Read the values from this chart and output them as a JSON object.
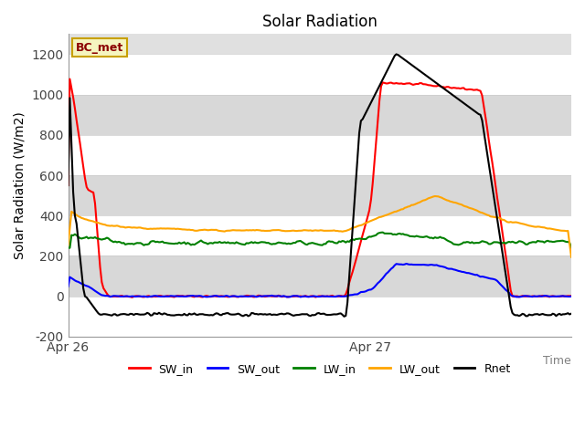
{
  "title": "Solar Radiation",
  "ylabel": "Solar Radiation (W/m2)",
  "xlabel": "Time",
  "ylim": [
    -200,
    1300
  ],
  "yticks": [
    -200,
    0,
    200,
    400,
    600,
    800,
    1000,
    1200
  ],
  "legend_labels": [
    "SW_in",
    "SW_out",
    "LW_in",
    "LW_out",
    "Rnet"
  ],
  "line_colors": [
    "red",
    "blue",
    "green",
    "orange",
    "black"
  ],
  "bc_met_label": "BC_met",
  "axes_facecolor": "#e8e8e8",
  "grid_color": "white",
  "apr26_tick": 0.0,
  "apr27_tick": 0.6,
  "xlim": [
    0.0,
    1.0
  ],
  "n_points": 300
}
